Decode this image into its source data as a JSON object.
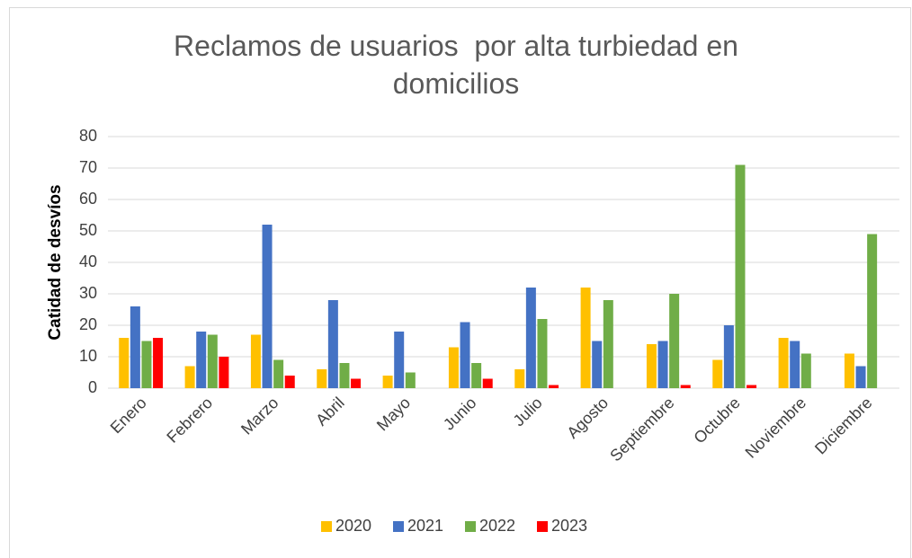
{
  "chart_data": {
    "type": "bar",
    "title": "Reclamos de usuarios  por alta turbiedad en domicilios",
    "y_label": "Catidad de desvíos",
    "categories": [
      "Enero",
      "Febrero",
      "Marzo",
      "Abril",
      "Mayo",
      "Junio",
      "Julio",
      "Agosto",
      "Septiembre",
      "Octubre",
      "Noviembre",
      "Diciembre"
    ],
    "series": [
      {
        "name": "2020",
        "color": "#FFC000",
        "values": [
          16,
          7,
          17,
          6,
          4,
          13,
          6,
          32,
          14,
          9,
          16,
          11
        ]
      },
      {
        "name": "2021",
        "color": "#4472C4",
        "values": [
          26,
          18,
          52,
          28,
          18,
          21,
          32,
          15,
          15,
          20,
          15,
          7
        ]
      },
      {
        "name": "2022",
        "color": "#70AD47",
        "values": [
          15,
          17,
          9,
          8,
          5,
          8,
          22,
          28,
          30,
          71,
          11,
          49
        ]
      },
      {
        "name": "2023",
        "color": "#FF0000",
        "values": [
          16,
          10,
          4,
          3,
          null,
          3,
          1,
          null,
          1,
          1,
          null,
          null
        ]
      }
    ],
    "ylim": [
      0,
      80
    ],
    "yticks": [
      0,
      10,
      20,
      30,
      40,
      50,
      60,
      70,
      80
    ],
    "grid": true,
    "legend": "bottom"
  }
}
